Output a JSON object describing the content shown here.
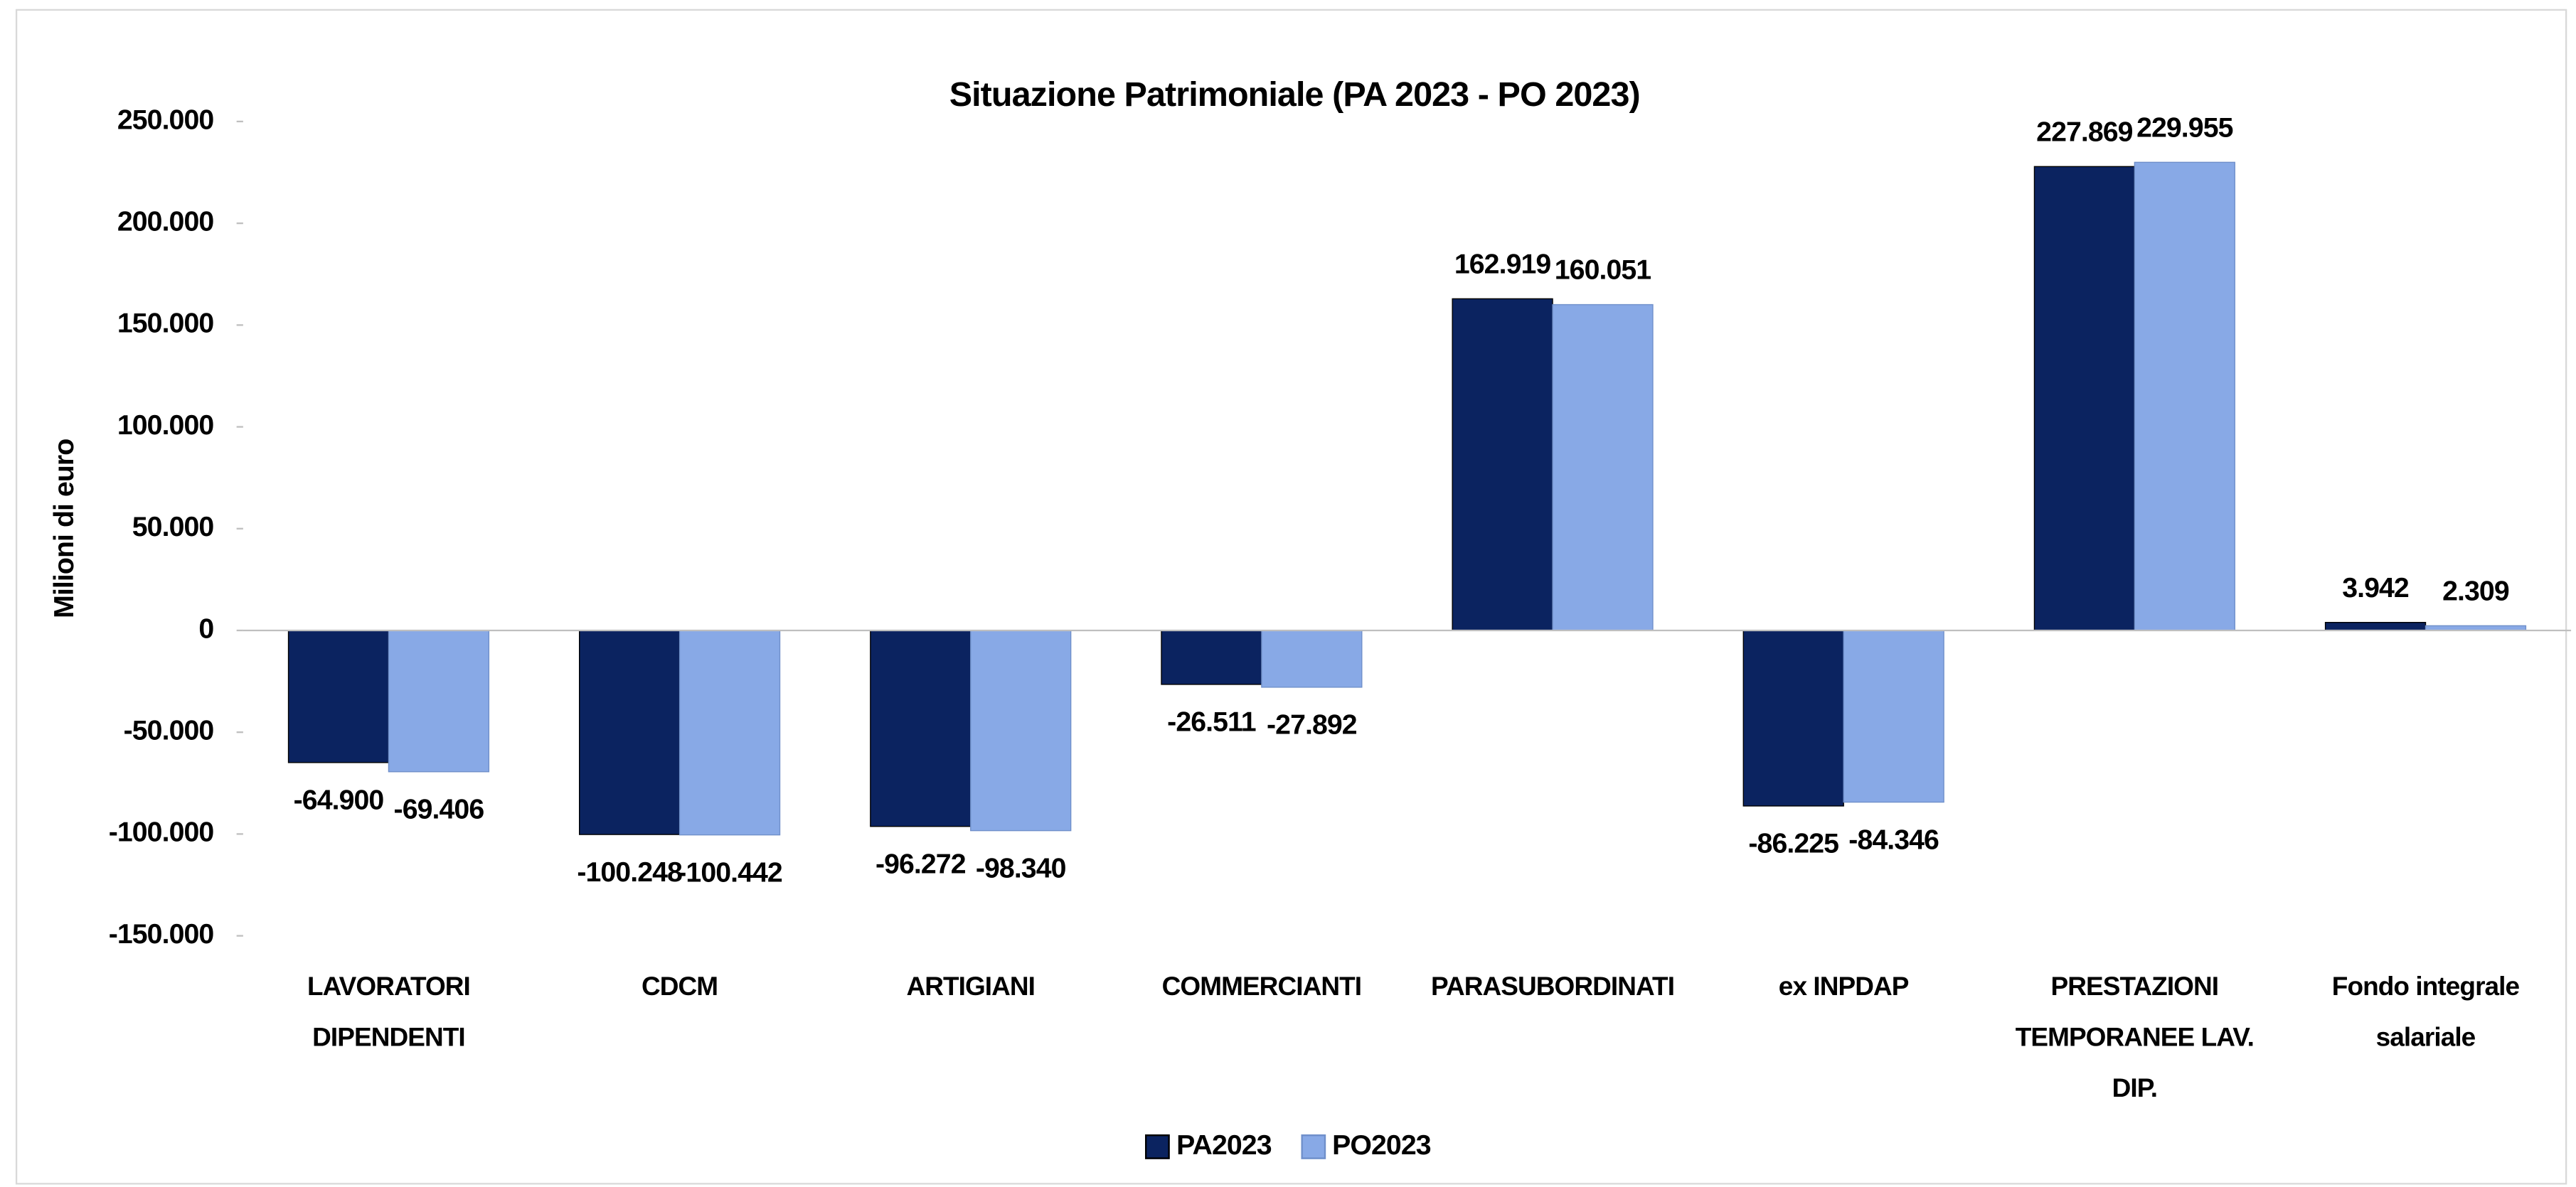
{
  "chart_data": {
    "type": "bar",
    "title": "Situazione Patrimoniale (PA 2023 - PO 2023)",
    "y_label": "Milioni di euro",
    "categories": [
      "LAVORATORI DIPENDENTI",
      "CDCM",
      "ARTIGIANI",
      "COMMERCIANTI",
      "PARASUBORDINATI",
      "ex INPDAP",
      "PRESTAZIONI TEMPORANEE LAV. DIP.",
      "Fondo integrale salariale"
    ],
    "series": [
      {
        "name": "PA2023",
        "color": "#0b2360",
        "values": [
          -64900,
          -100248,
          -96272,
          -26511,
          162919,
          -86225,
          227869,
          3942
        ],
        "value_labels": [
          "-64.900",
          "-100.248",
          "-96.272",
          "-26.511",
          "162.919",
          "-86.225",
          "227.869",
          "3.942"
        ]
      },
      {
        "name": "PO2023",
        "color": "#88a9e6",
        "values": [
          -69406,
          -100442,
          -98340,
          -27892,
          160051,
          -84346,
          229955,
          2309
        ],
        "value_labels": [
          "-69.406",
          "-100.442",
          "-98.340",
          "-27.892",
          "160.051",
          "-84.346",
          "229.955",
          "2.309"
        ]
      }
    ],
    "ylim": [
      -150000,
      250000
    ],
    "yticks": [
      {
        "value": -150000,
        "label": "-150.000"
      },
      {
        "value": -100000,
        "label": "-100.000"
      },
      {
        "value": -50000,
        "label": "-50.000"
      },
      0,
      {
        "value": 50000,
        "label": "50.000"
      },
      {
        "value": 100000,
        "label": "100.000"
      },
      {
        "value": 150000,
        "label": "150.000"
      },
      {
        "value": 200000,
        "label": "200.000"
      },
      {
        "value": 250000,
        "label": "250.000"
      }
    ],
    "grid": false,
    "legend": "bottom"
  }
}
